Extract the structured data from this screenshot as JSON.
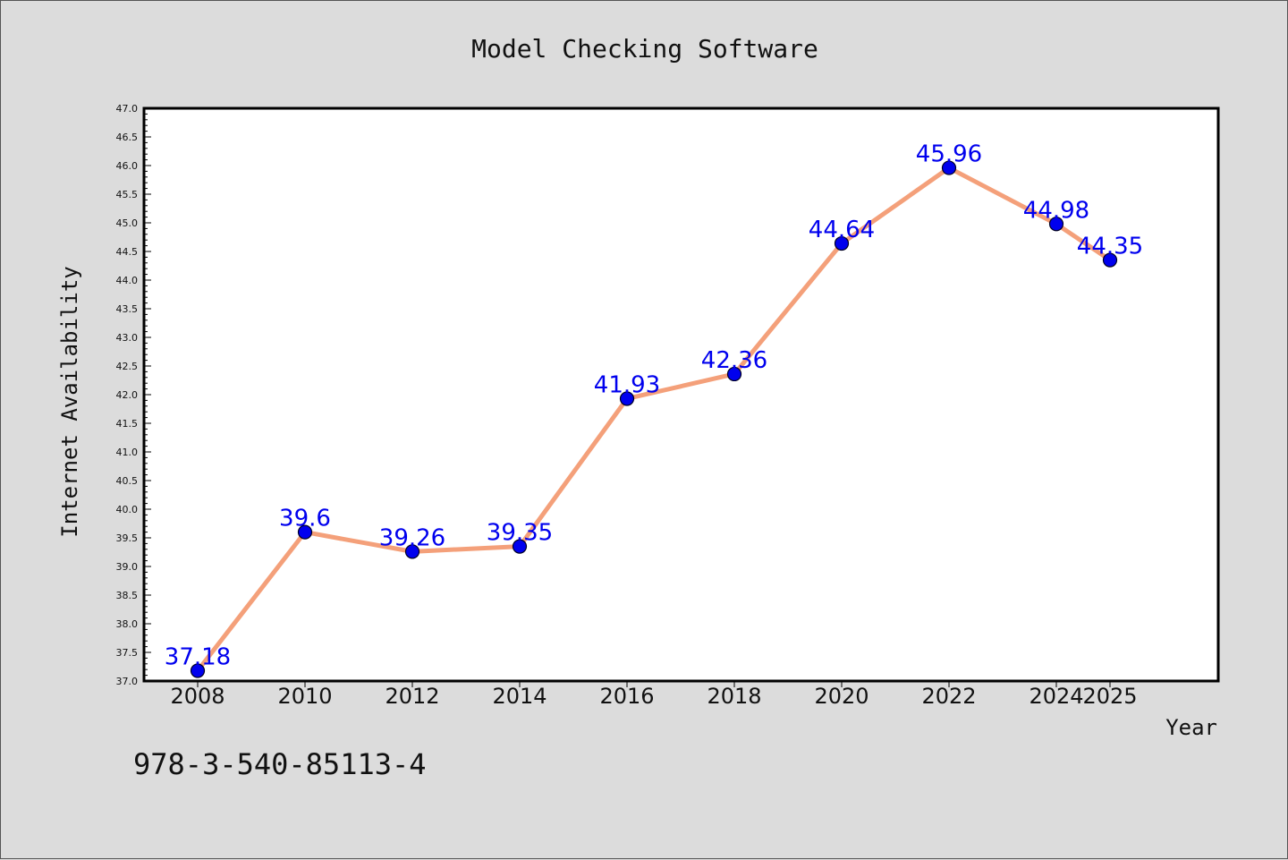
{
  "chart_data": {
    "type": "line",
    "title": "Model Checking Software",
    "xlabel": "Year",
    "ylabel": "Internet Availability",
    "x": [
      "2008",
      "2010",
      "2012",
      "2014",
      "2016",
      "2018",
      "2020",
      "2022",
      "2024",
      "2025"
    ],
    "series": [
      {
        "values": [
          37.18,
          39.6,
          39.26,
          39.35,
          41.93,
          42.36,
          44.64,
          45.96,
          44.98,
          44.35
        ]
      }
    ],
    "data_labels": [
      "37.18",
      "39.6",
      "39.26",
      "39.35",
      "41.93",
      "42.36",
      "44.64",
      "45.96",
      "44.98",
      "44.35"
    ],
    "ylim": [
      37.0,
      47.0
    ],
    "yticks": [
      "37.0",
      "37.5",
      "38.0",
      "38.5",
      "39.0",
      "39.5",
      "40.0",
      "40.5",
      "41.0",
      "41.5",
      "42.0",
      "42.5",
      "43.0",
      "43.5",
      "44.0",
      "44.5",
      "45.0",
      "45.5",
      "46.0",
      "46.5",
      "47.0"
    ],
    "grid": false,
    "line_color": "#f4a07a",
    "marker_color": "#0000ee",
    "label_color": "#0000ee"
  },
  "footer": {
    "text": "978-3-540-85113-4"
  }
}
